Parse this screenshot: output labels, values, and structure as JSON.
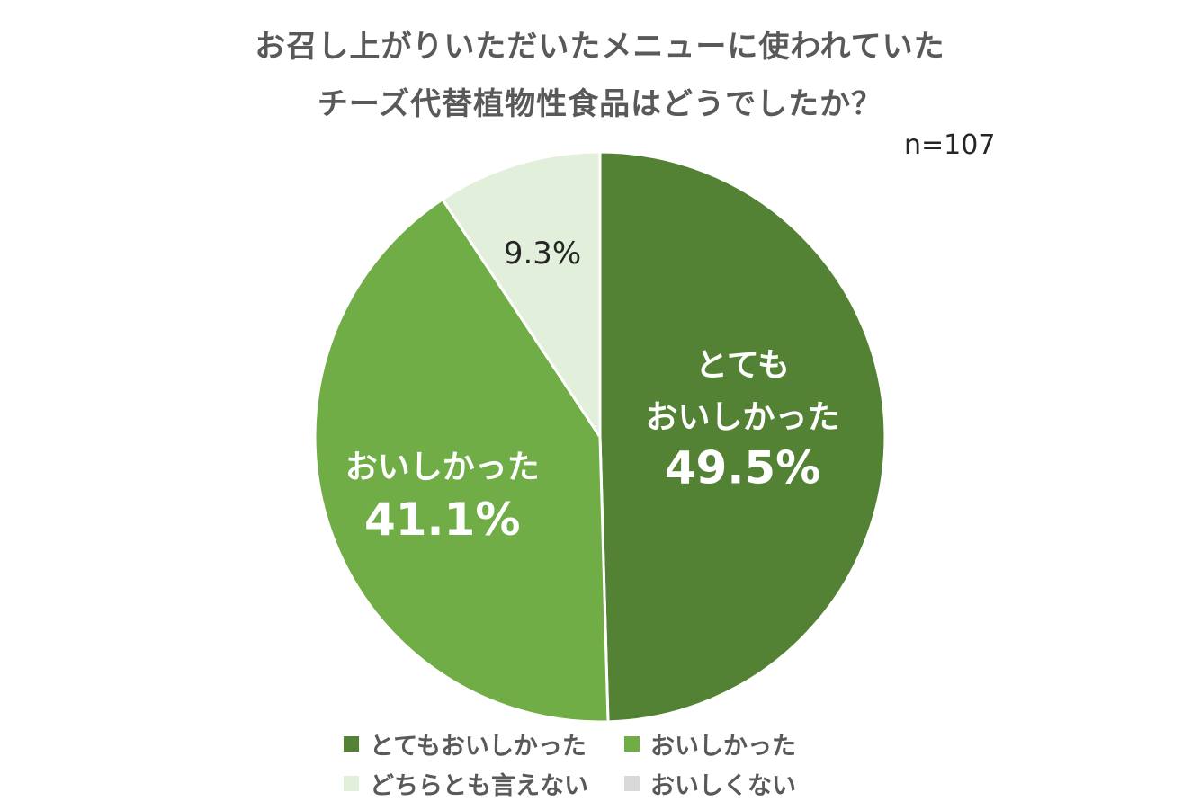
{
  "chart_data": {
    "type": "pie",
    "title": "お召し上がりいただいたメニューに使われていた\nチーズ代替植物性食品はどうでしたか？",
    "title_lines": [
      "お召し上がりいただいたメニューに使われていた",
      "チーズ代替植物性食品はどうでしたか？"
    ],
    "sample_size": "n=107",
    "start_angle_deg": 0,
    "direction": "clockwise",
    "legend_position": "bottom",
    "categories": [
      "とてもおいしかった",
      "おいしかった",
      "どちらとも言えない",
      "おいしくない"
    ],
    "values": [
      49.5,
      41.1,
      9.3,
      0
    ],
    "colors": [
      "#548235",
      "#70AD47",
      "#E2EFDA",
      "#D9D9D9"
    ],
    "data_labels": [
      {
        "lines": [
          "とても",
          "おいしかった",
          "49.5%"
        ]
      },
      {
        "lines": [
          "おいしかった",
          "41.1%"
        ]
      },
      {
        "lines": [
          "9.3%"
        ]
      },
      {
        "lines": []
      }
    ]
  }
}
